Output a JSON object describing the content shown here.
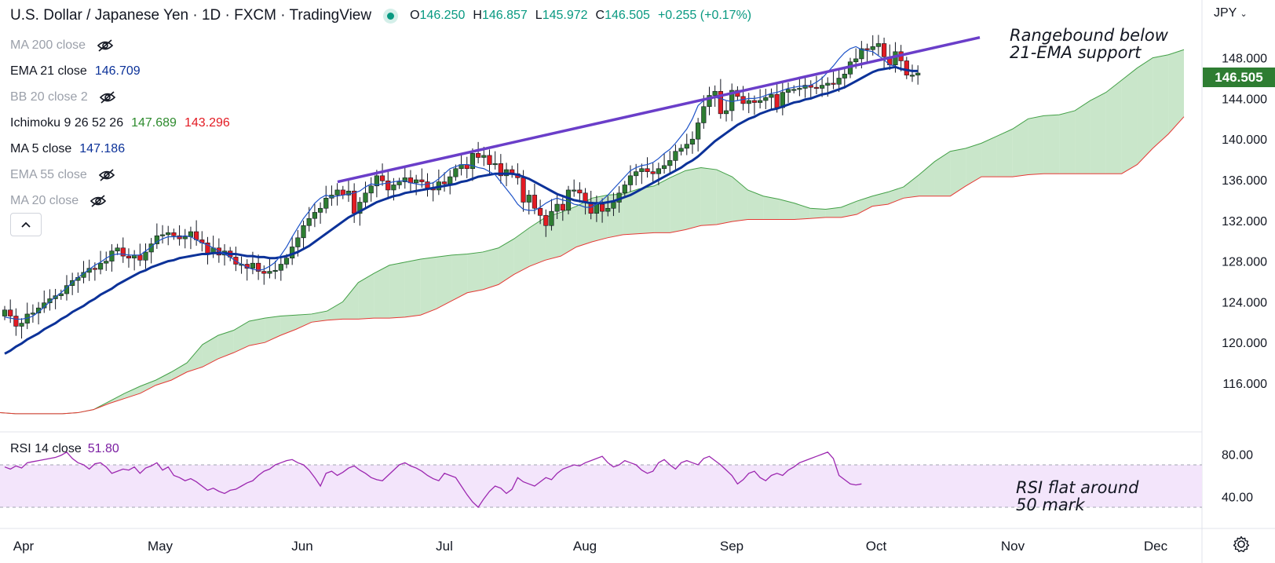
{
  "header": {
    "title": "U.S. Dollar / Japanese Yen · 1D · FXCM · TradingView",
    "open_label": "O",
    "open": "146.250",
    "high_label": "H",
    "high": "146.857",
    "low_label": "L",
    "low": "145.972",
    "close_label": "C",
    "close": "146.505",
    "change": "+0.255 (+0.17%)"
  },
  "legend": [
    {
      "name": "MA 200 close",
      "hidden": true
    },
    {
      "name": "EMA 21 close",
      "value": "146.709"
    },
    {
      "name": "BB 20 close 2",
      "hidden": true
    },
    {
      "name": "Ichimoku 9 26 52 26",
      "value": "147.689",
      "value2": "143.296"
    },
    {
      "name": "MA 5 close",
      "value": "147.186"
    },
    {
      "name": "EMA 55 close",
      "hidden": true
    },
    {
      "name": "MA 20 close",
      "hidden": true
    }
  ],
  "rsi_legend": {
    "name": "RSI 14 close",
    "value": "51.80"
  },
  "currency": "JPY",
  "last_price": "146.505",
  "annotations": {
    "price": [
      "Rangebound below",
      "21-EMA support"
    ],
    "rsi": [
      "RSI flat around",
      "50 mark"
    ]
  },
  "colors": {
    "up": "#2e7d32",
    "down": "#e31b23",
    "ema21": "#0c3299",
    "ma5": "#1e53c8",
    "trendline": "#6a3ec9",
    "cloud_bull": "#a5d6a7",
    "cloud_bear": "#f28b82",
    "rsi": "#9c27b0"
  },
  "chart_data": {
    "type": "candlestick",
    "symbol": "U.S. Dollar / Japanese Yen",
    "x_labels": [
      "Apr",
      "May",
      "Jun",
      "Jul",
      "Aug",
      "Sep",
      "Oct",
      "Nov",
      "Dec"
    ],
    "y_ticks": [
      "116.000",
      "120.000",
      "124.000",
      "128.000",
      "132.000",
      "136.000",
      "140.000",
      "144.000",
      "148.000"
    ],
    "ylim": [
      112.0,
      152.0
    ],
    "closes": [
      123.2,
      122.6,
      121.6,
      121.9,
      122.8,
      122.9,
      123.4,
      123.9,
      124.3,
      124.6,
      124.8,
      125.6,
      126.1,
      126.4,
      126.9,
      127.3,
      127.2,
      127.8,
      128.0,
      129.0,
      129.3,
      128.5,
      128.3,
      128.6,
      128.1,
      128.9,
      129.7,
      130.5,
      130.6,
      130.8,
      130.5,
      130.2,
      130.4,
      130.9,
      130.1,
      129.8,
      128.8,
      129.3,
      128.6,
      129.0,
      128.4,
      127.7,
      127.7,
      127.3,
      127.8,
      127.0,
      126.8,
      127.0,
      127.1,
      127.7,
      128.3,
      129.4,
      130.3,
      131.5,
      132.2,
      132.8,
      133.2,
      134.2,
      134.5,
      135.0,
      134.5,
      134.9,
      132.7,
      133.8,
      134.7,
      135.4,
      136.4,
      135.9,
      135.0,
      135.5,
      135.8,
      136.2,
      135.7,
      136.0,
      135.8,
      135.2,
      135.0,
      135.8,
      135.6,
      136.3,
      137.1,
      137.5,
      137.1,
      138.6,
      138.2,
      138.4,
      137.5,
      137.6,
      136.4,
      137.0,
      136.6,
      136.2,
      133.8,
      134.5,
      133.2,
      132.5,
      131.5,
      132.9,
      133.6,
      133.0,
      135.0,
      135.0,
      134.7,
      133.8,
      132.7,
      133.6,
      132.9,
      133.2,
      133.8,
      134.7,
      135.5,
      136.4,
      136.8,
      137.1,
      136.8,
      136.6,
      137.1,
      137.4,
      137.9,
      138.8,
      139.1,
      139.5,
      140.0,
      141.6,
      143.2,
      144.3,
      144.7,
      142.5,
      142.8,
      144.8,
      144.2,
      143.5,
      143.8,
      143.6,
      143.8,
      144.1,
      144.4,
      143.1,
      144.6,
      144.9,
      144.9,
      145.0,
      145.3,
      145.1,
      145.0,
      145.3,
      145.5,
      145.4,
      146.0,
      146.4,
      147.6,
      147.9,
      148.9,
      148.8,
      149.1,
      149.4,
      148.1,
      147.3,
      148.6,
      147.7,
      146.3,
      146.3,
      146.5
    ],
    "ema21": [
      118.9,
      119.2,
      119.6,
      119.9,
      120.3,
      120.6,
      120.9,
      121.3,
      121.6,
      121.9,
      122.3,
      122.6,
      123.0,
      123.3,
      123.6,
      124.0,
      124.3,
      124.7,
      125.0,
      125.3,
      125.7,
      126.0,
      126.3,
      126.6,
      126.9,
      127.1,
      127.4,
      127.6,
      127.8,
      128.0,
      128.1,
      128.3,
      128.4,
      128.5,
      128.6,
      128.7,
      128.7,
      128.8,
      128.8,
      128.8,
      128.7,
      128.7,
      128.6,
      128.5,
      128.5,
      128.4,
      128.4,
      128.3,
      128.3,
      128.4,
      128.5,
      128.7,
      128.9,
      129.2,
      129.5,
      129.9,
      130.3,
      130.7,
      131.1,
      131.5,
      131.9,
      132.3,
      132.6,
      132.9,
      133.2,
      133.5,
      133.8,
      134.0,
      134.2,
      134.4,
      134.5,
      134.7,
      134.8,
      134.9,
      135.0,
      135.1,
      135.2,
      135.3,
      135.4,
      135.5,
      135.6,
      135.8,
      135.9,
      136.1,
      136.3,
      136.4,
      136.5,
      136.6,
      136.6,
      136.6,
      136.6,
      136.5,
      136.3,
      136.1,
      135.8,
      135.5,
      135.2,
      134.9,
      134.6,
      134.4,
      134.2,
      134.0,
      133.9,
      133.8,
      133.7,
      133.7,
      133.7,
      133.8,
      133.9,
      134.1,
      134.3,
      134.5,
      134.8,
      135.1,
      135.4,
      135.7,
      136.0,
      136.3,
      136.6,
      136.9,
      137.2,
      137.6,
      137.9,
      138.3,
      138.8,
      139.3,
      139.8,
      140.2,
      140.6,
      141.0,
      141.4,
      141.7,
      142.0,
      142.2,
      142.5,
      142.7,
      142.9,
      143.0,
      143.2,
      143.4,
      143.6,
      143.7,
      143.9,
      144.0,
      144.2,
      144.4,
      144.5,
      144.7,
      144.9,
      145.1,
      145.4,
      145.7,
      146.0,
      146.3,
      146.6,
      146.8,
      146.9,
      147.0,
      147.1,
      146.9,
      146.8,
      146.7,
      146.7
    ],
    "ma5": [
      122.5,
      122.4,
      122.3,
      122.3,
      122.4,
      122.6,
      123.0,
      123.5,
      124.0,
      124.5,
      124.9,
      125.4,
      125.9,
      126.4,
      126.8,
      127.2,
      127.6,
      127.9,
      128.3,
      128.6,
      128.7,
      128.7,
      128.6,
      128.6,
      128.6,
      129.0,
      129.4,
      129.9,
      130.2,
      130.4,
      130.4,
      130.4,
      130.5,
      130.4,
      130.1,
      129.8,
      129.6,
      129.3,
      129.0,
      128.7,
      128.4,
      128.0,
      127.7,
      127.4,
      127.2,
      127.1,
      127.2,
      127.5,
      127.9,
      128.6,
      129.4,
      130.4,
      131.3,
      132.2,
      132.9,
      133.7,
      134.2,
      134.5,
      134.3,
      134.4,
      134.5,
      134.6,
      134.7,
      134.9,
      135.3,
      135.6,
      135.5,
      135.6,
      135.7,
      135.8,
      135.9,
      135.9,
      135.7,
      135.6,
      135.5,
      135.6,
      135.7,
      136.1,
      136.6,
      137.1,
      137.3,
      137.5,
      137.5,
      137.4,
      137.2,
      137.1,
      136.8,
      136.5,
      135.8,
      135.1,
      134.4,
      133.6,
      133.1,
      133.0,
      133.0,
      133.3,
      133.7,
      134.0,
      134.2,
      134.0,
      133.9,
      133.6,
      133.5,
      133.3,
      133.3,
      133.6,
      134.0,
      134.5,
      135.1,
      135.7,
      136.3,
      136.9,
      137.2,
      137.4,
      137.5,
      137.7,
      138.1,
      138.6,
      139.0,
      139.6,
      140.3,
      141.0,
      142.0,
      143.3,
      143.8,
      144.0,
      144.1,
      144.0,
      143.8,
      143.7,
      143.8,
      143.9,
      144.0,
      144.0,
      144.1,
      144.3,
      144.5,
      144.6,
      144.8,
      145.0,
      145.1,
      145.2,
      145.2,
      145.3,
      145.6,
      146.0,
      146.6,
      147.2,
      147.9,
      148.5,
      148.9,
      149.1,
      148.8,
      148.7,
      148.6,
      148.2,
      147.8,
      147.3,
      147.2
    ],
    "trendline": {
      "start": [
        "Jun 10",
        135.8
      ],
      "end": [
        "Oct 21",
        150.0
      ]
    },
    "cloud": {
      "span_a": [
        113.1,
        113.0,
        113.0,
        113.0,
        113.0,
        113.1,
        113.4,
        114.2,
        115.0,
        115.7,
        116.3,
        117.1,
        118.0,
        119.8,
        120.7,
        121.2,
        122.1,
        122.4,
        122.6,
        122.7,
        122.8,
        123.1,
        124.0,
        125.9,
        126.8,
        127.6,
        127.9,
        128.2,
        128.4,
        128.6,
        128.7,
        128.9,
        129.3,
        130.2,
        131.3,
        132.3,
        132.8,
        133.4,
        134.2,
        134.5,
        134.6,
        135.1,
        135.4,
        136.2,
        136.9,
        137.2,
        137.0,
        136.3,
        135.0,
        134.4,
        134.1,
        133.7,
        133.2,
        133.1,
        133.3,
        133.9,
        134.4,
        134.8,
        135.3,
        136.5,
        137.8,
        138.8,
        139.1,
        139.6,
        140.3,
        141.0,
        142.0,
        142.3,
        142.4,
        142.8,
        143.8,
        144.6,
        145.8,
        147.0,
        148.0,
        148.3,
        148.8
      ],
      "span_b": [
        113.1,
        113.0,
        113.0,
        113.0,
        113.0,
        113.1,
        113.4,
        114.0,
        114.5,
        115.0,
        115.8,
        116.3,
        117.1,
        117.6,
        118.4,
        119.0,
        119.7,
        120.0,
        120.7,
        121.3,
        122.0,
        122.2,
        122.3,
        122.3,
        122.4,
        122.4,
        122.5,
        122.7,
        123.3,
        124.1,
        124.9,
        125.2,
        125.7,
        126.7,
        127.5,
        128.1,
        128.5,
        129.4,
        129.9,
        130.3,
        130.6,
        130.7,
        130.8,
        130.8,
        131.1,
        131.5,
        131.6,
        131.9,
        132.1,
        132.1,
        132.1,
        132.1,
        132.2,
        132.3,
        132.3,
        132.6,
        133.4,
        133.6,
        134.2,
        134.4,
        134.4,
        134.4,
        135.4,
        136.3,
        136.3,
        136.3,
        136.5,
        136.6,
        136.6,
        136.6,
        136.6,
        136.6,
        136.6,
        137.5,
        139.1,
        140.5,
        142.2
      ]
    },
    "rsi": {
      "label": "RSI 14 close",
      "last": 51.8,
      "bands": [
        30,
        70
      ],
      "ticks": [
        "40.00",
        "80.00"
      ],
      "values": [
        68,
        66,
        69,
        67,
        72,
        73,
        74,
        75,
        76,
        77,
        79,
        82,
        76,
        72,
        70,
        66,
        71,
        72,
        68,
        62,
        64,
        66,
        65,
        68,
        62,
        67,
        69,
        72,
        65,
        68,
        60,
        58,
        55,
        57,
        54,
        50,
        46,
        48,
        45,
        43,
        46,
        47,
        50,
        53,
        55,
        60,
        64,
        66,
        70,
        72,
        74,
        75,
        72,
        70,
        65,
        58,
        50,
        62,
        64,
        60,
        63,
        67,
        69,
        65,
        62,
        58,
        56,
        55,
        60,
        65,
        70,
        72,
        69,
        67,
        64,
        60,
        57,
        55,
        62,
        60,
        58,
        50,
        42,
        35,
        30,
        38,
        45,
        50,
        48,
        43,
        47,
        58,
        54,
        52,
        50,
        54,
        58,
        56,
        62,
        66,
        68,
        70,
        69,
        72,
        74,
        76,
        78,
        72,
        68,
        70,
        74,
        72,
        70,
        65,
        62,
        64,
        72,
        75,
        70,
        66,
        72,
        74,
        72,
        70,
        76,
        78,
        74,
        70,
        65,
        60,
        52,
        56,
        62,
        64,
        58,
        55,
        60,
        62,
        60,
        65,
        68,
        72,
        74,
        76,
        78,
        80,
        82,
        76,
        60,
        56,
        52,
        51,
        52
      ]
    }
  }
}
